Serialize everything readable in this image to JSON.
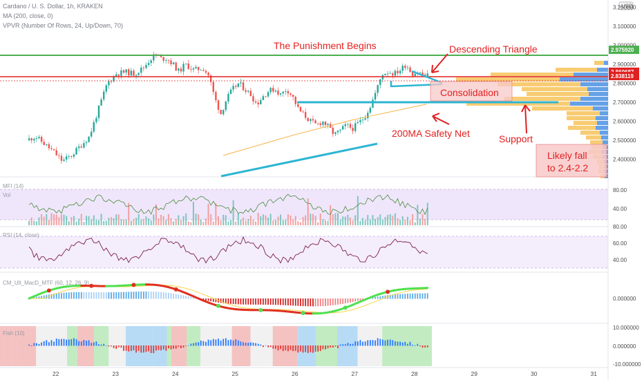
{
  "header": {
    "symbol_line": "Cardano / U. S. Dollar, 1h, KRAKEN",
    "indicators": [
      "MA (200, close, 0)",
      "VPVR (Number Of Rows, 24, Up/Down, 70)"
    ],
    "currency_badge": "USD"
  },
  "panes": {
    "mfi_label": "MFI (14)",
    "vol_label": "Vol",
    "rsi_label": "RSI (14, close)",
    "macd_label": "CM_Ult_MacD_MTF (60, 12, 26, 9)",
    "fish_label": "Fish (10)"
  },
  "annotations": {
    "title": "The Punishment Begins",
    "descending_triangle": "Descending Triangle",
    "consolidation": "Consolidation",
    "safety_net": "200MA Safety Net",
    "support": "Support",
    "likely_fall_1": "Likely fall",
    "likely_fall_2": "to 2.4-2.2"
  },
  "price_tags": [
    {
      "value": "2.975920",
      "color": "#4caf50"
    },
    {
      "value": "2.860687",
      "color": "#e02020"
    },
    {
      "value": "2.838119",
      "color": "#e02020"
    }
  ],
  "chart_data": {
    "type": "candlestick",
    "title": "Cardano / U. S. Dollar, 1h, KRAKEN",
    "x_ticks": [
      "22",
      "23",
      "24",
      "25",
      "26",
      "27",
      "28",
      "29",
      "30",
      "31"
    ],
    "price_axis_ticks": [
      "3.200000",
      "3.100000",
      "3.000000",
      "2.900000",
      "2.800000",
      "2.700000",
      "2.600000",
      "2.500000",
      "2.400000"
    ],
    "price_range": [
      2.3,
      3.22
    ],
    "price_path": [
      [
        21.55,
        2.5
      ],
      [
        21.7,
        2.52
      ],
      [
        21.85,
        2.48
      ],
      [
        22.0,
        2.44
      ],
      [
        22.15,
        2.39
      ],
      [
        22.3,
        2.42
      ],
      [
        22.45,
        2.47
      ],
      [
        22.6,
        2.52
      ],
      [
        22.75,
        2.66
      ],
      [
        22.9,
        2.8
      ],
      [
        23.05,
        2.85
      ],
      [
        23.2,
        2.86
      ],
      [
        23.35,
        2.85
      ],
      [
        23.5,
        2.88
      ],
      [
        23.6,
        2.92
      ],
      [
        23.7,
        2.95
      ],
      [
        23.8,
        2.93
      ],
      [
        23.9,
        2.93
      ],
      [
        24.0,
        2.9
      ],
      [
        24.1,
        2.86
      ],
      [
        24.2,
        2.9
      ],
      [
        24.35,
        2.87
      ],
      [
        24.5,
        2.88
      ],
      [
        24.6,
        2.84
      ],
      [
        24.7,
        2.72
      ],
      [
        24.8,
        2.64
      ],
      [
        24.9,
        2.72
      ],
      [
        25.0,
        2.77
      ],
      [
        25.1,
        2.8
      ],
      [
        25.2,
        2.77
      ],
      [
        25.3,
        2.74
      ],
      [
        25.4,
        2.69
      ],
      [
        25.5,
        2.73
      ],
      [
        25.6,
        2.76
      ],
      [
        25.7,
        2.77
      ],
      [
        25.8,
        2.74
      ],
      [
        25.9,
        2.77
      ],
      [
        26.0,
        2.73
      ],
      [
        26.1,
        2.66
      ],
      [
        26.2,
        2.63
      ],
      [
        26.3,
        2.6
      ],
      [
        26.4,
        2.58
      ],
      [
        26.5,
        2.6
      ],
      [
        26.6,
        2.57
      ],
      [
        26.7,
        2.53
      ],
      [
        26.8,
        2.55
      ],
      [
        26.9,
        2.58
      ],
      [
        27.0,
        2.56
      ],
      [
        27.1,
        2.59
      ],
      [
        27.2,
        2.62
      ],
      [
        27.3,
        2.68
      ],
      [
        27.4,
        2.76
      ],
      [
        27.5,
        2.85
      ],
      [
        27.6,
        2.86
      ],
      [
        27.7,
        2.85
      ],
      [
        27.8,
        2.87
      ],
      [
        27.9,
        2.9
      ],
      [
        28.0,
        2.85
      ],
      [
        28.1,
        2.86
      ],
      [
        28.2,
        2.84
      ]
    ],
    "ma200": [
      [
        24.8,
        2.42
      ],
      [
        26.0,
        2.53
      ],
      [
        27.0,
        2.61
      ],
      [
        28.2,
        2.69
      ]
    ],
    "horizontal_levels": [
      2.97592,
      2.860687,
      2.838119
    ],
    "oscillator_ticks": {
      "mfi": [
        "80.00",
        "40.00"
      ],
      "rsi": [
        "80.00",
        "60.00",
        "40.00"
      ],
      "macd": [
        "0.000000"
      ],
      "fish": [
        "10.000000",
        "0.000000",
        "-10.000000"
      ]
    }
  }
}
